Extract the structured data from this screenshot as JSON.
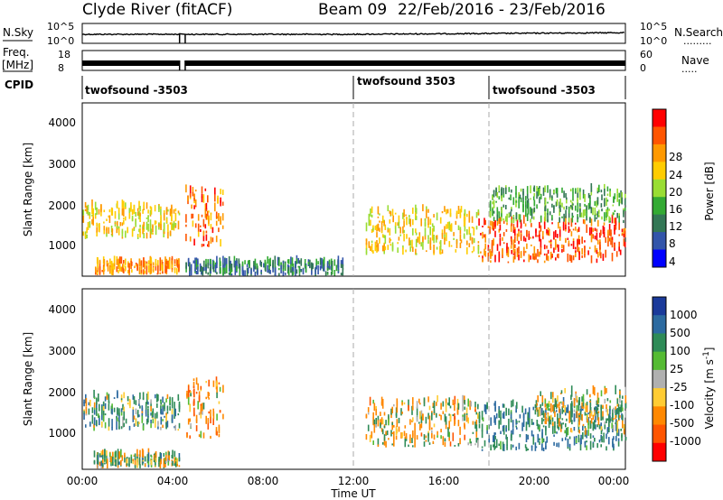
{
  "header": {
    "station_title": "Clyde River (fitACF)",
    "beam_title": "Beam 09",
    "date_range": "22/Feb/2016 - 23/Feb/2016"
  },
  "strips": {
    "nsky_label": "N.Sky",
    "nsky_ticks": [
      "10^5",
      "10^0"
    ],
    "nsearch_label": "N.Search",
    "nsearch_ticks": [
      "10^5",
      "10^0"
    ],
    "freq_label_1": "Freq.",
    "freq_label_2": "[MHz]",
    "freq_ticks": [
      "18",
      "8"
    ],
    "nave_label": "Nave",
    "nave_ticks": [
      "60",
      "0"
    ],
    "cpid_label": "CPID",
    "cpid_segments": [
      "twofsound -3503",
      "twofsound 3503",
      "twofsound -3503"
    ]
  },
  "axes": {
    "ylabel": "Slant Range [km]",
    "yticks": [
      "4000",
      "3000",
      "2000",
      "1000"
    ],
    "xlabel": "Time UT",
    "xticks": [
      "00:00",
      "04:00",
      "08:00",
      "12:00",
      "16:00",
      "20:00",
      "00:00"
    ]
  },
  "colorbars": {
    "power": {
      "label": "Power [dB]",
      "ticks": [
        "28",
        "24",
        "20",
        "16",
        "12",
        "8",
        "4"
      ],
      "colors": [
        "#ff0000",
        "#ff5500",
        "#ff9900",
        "#ffcc00",
        "#99dd33",
        "#33aa33",
        "#337755",
        "#3355aa",
        "#0000ff"
      ]
    },
    "velocity": {
      "label": "Velocity [m s",
      "label_sup": "-1",
      "label_end": "]",
      "ticks": [
        "1000",
        "500",
        "100",
        "25",
        "-25",
        "-100",
        "-500",
        "-1000"
      ],
      "colors": [
        "#1a3a9a",
        "#2c6aa0",
        "#2e8b57",
        "#55bb33",
        "#b0b0b0",
        "#ffcc33",
        "#ff8800",
        "#ff5500",
        "#ff0000"
      ]
    }
  },
  "chart_data": [
    {
      "type": "heatmap",
      "title": "Power",
      "x_range": [
        "00:00",
        "00:00"
      ],
      "x_unit": "hours UT",
      "ylim": [
        180,
        4500
      ],
      "y_unit": "km",
      "colorbar_label": "Power [dB]",
      "colorbar_range": [
        0,
        32
      ],
      "vertical_markers_hours": [
        12,
        18
      ],
      "data_gap_hours": [
        4.3,
        4.55
      ],
      "echo_regions": [
        {
          "hours": [
            0,
            4.3
          ],
          "range_km": [
            1100,
            1900
          ],
          "power_db": 20
        },
        {
          "hours": [
            0.5,
            4.3
          ],
          "range_km": [
            200,
            500
          ],
          "power_db": 24
        },
        {
          "hours": [
            4.55,
            6.2
          ],
          "range_km": [
            900,
            2300
          ],
          "power_db": 26
        },
        {
          "hours": [
            4.55,
            11.5
          ],
          "range_km": [
            180,
            500
          ],
          "power_db": 8
        },
        {
          "hours": [
            12.5,
            17.5
          ],
          "range_km": [
            700,
            1800
          ],
          "power_db": 20
        },
        {
          "hours": [
            17.5,
            24
          ],
          "range_km": [
            500,
            1500
          ],
          "power_db": 28
        },
        {
          "hours": [
            18,
            24
          ],
          "range_km": [
            1500,
            2300
          ],
          "power_db": 12
        }
      ]
    },
    {
      "type": "heatmap",
      "title": "Velocity",
      "x_range": [
        "00:00",
        "00:00"
      ],
      "x_unit": "hours UT",
      "ylim": [
        180,
        4500
      ],
      "y_unit": "km",
      "colorbar_label": "Velocity [m s-1]",
      "colorbar_range": [
        -1000,
        1000
      ],
      "vertical_markers_hours": [
        12,
        18
      ],
      "data_gap_hours": [
        4.3,
        4.55
      ],
      "echo_regions": [
        {
          "hours": [
            0,
            4.3
          ],
          "range_km": [
            1100,
            1900
          ],
          "velocity_ms": 300
        },
        {
          "hours": [
            0.5,
            4.3
          ],
          "range_km": [
            200,
            500
          ],
          "velocity_ms": 100
        },
        {
          "hours": [
            4.55,
            6.2
          ],
          "range_km": [
            900,
            2300
          ],
          "velocity_ms": -300
        },
        {
          "hours": [
            12.5,
            17.5
          ],
          "range_km": [
            700,
            1800
          ],
          "velocity_ms": -100
        },
        {
          "hours": [
            17.5,
            24
          ],
          "range_km": [
            600,
            1700
          ],
          "velocity_ms": 500
        },
        {
          "hours": [
            20,
            24
          ],
          "range_km": [
            1000,
            2000
          ],
          "velocity_ms": 0
        }
      ]
    }
  ]
}
